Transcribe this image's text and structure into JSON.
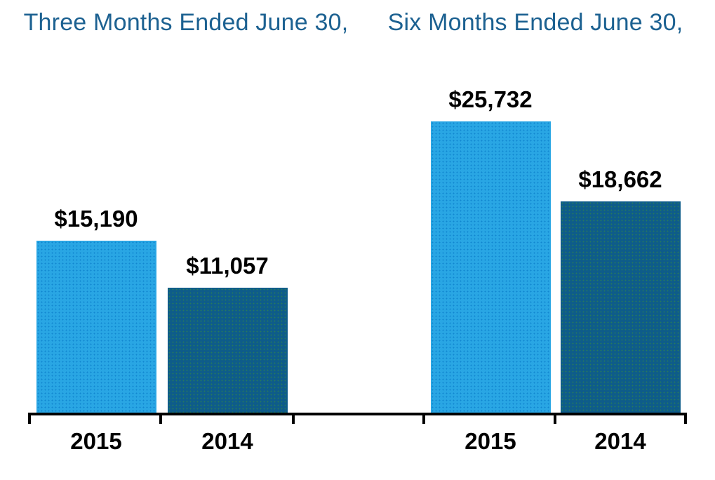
{
  "chart_data": {
    "type": "bar",
    "groups": [
      {
        "title": "Three Months Ended June 30,",
        "categories": [
          "2015",
          "2014"
        ],
        "values": [
          15190,
          11057
        ],
        "labels": [
          "$15,190",
          "$11,057"
        ]
      },
      {
        "title": "Six Months Ended June 30,",
        "categories": [
          "2015",
          "2014"
        ],
        "values": [
          25732,
          18662
        ],
        "labels": [
          "$25,732",
          "$18,662"
        ]
      }
    ],
    "series_colors": {
      "2015": "#29a6e4",
      "2014": "#0e5c8a"
    },
    "title_color": "#1c6191",
    "value_label_color": "#000000",
    "axis_color": "#000000",
    "ylim": [
      0,
      26500
    ],
    "grid": false,
    "legend": false,
    "y_axis_visible": false
  }
}
